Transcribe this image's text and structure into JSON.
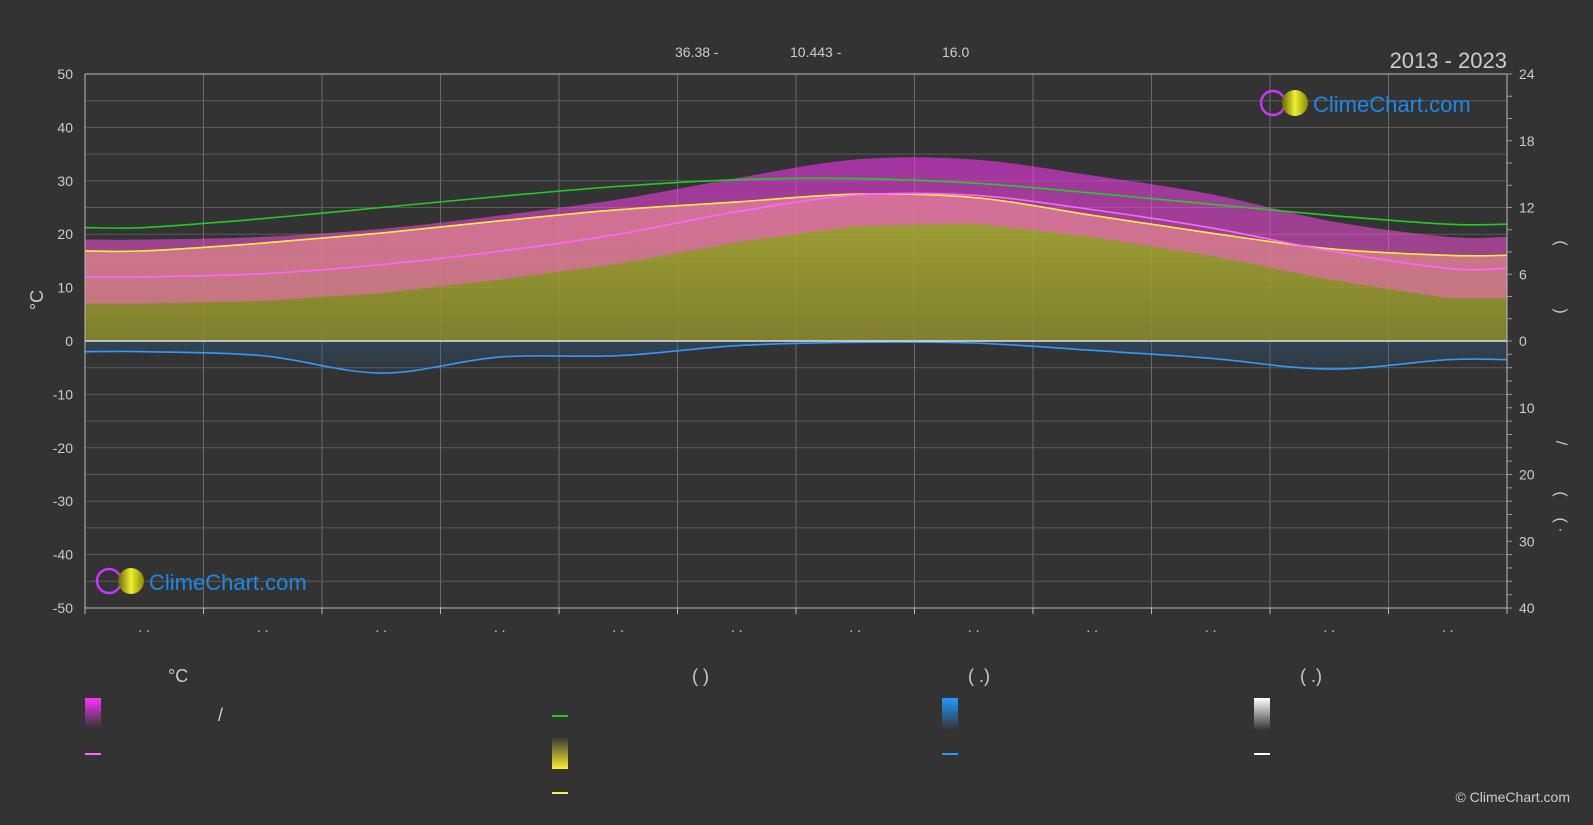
{
  "header": {
    "coords": [
      "36.38 -",
      "10.443 -",
      "16.0"
    ],
    "years": "2013 - 2023"
  },
  "brand": {
    "logo_text": "ClimeChart.com",
    "copyright": "© ClimeChart.com",
    "accent_color": "#1e88e5"
  },
  "chart_data": {
    "type": "area",
    "x": [
      1,
      2,
      3,
      4,
      5,
      6,
      7,
      8,
      9,
      10,
      11,
      12
    ],
    "x_tick_labels": [
      ". .",
      ". .",
      ". .",
      ". .",
      ". .",
      ". .",
      ". .",
      ". .",
      ". .",
      ". .",
      ". .",
      ". ."
    ],
    "y_left": {
      "label": "°C",
      "range": [
        -50,
        50
      ],
      "ticks": [
        50,
        40,
        30,
        20,
        10,
        0,
        -10,
        -20,
        -30,
        -40,
        -50
      ]
    },
    "y_right_top": {
      "range": [
        0,
        24
      ],
      "ticks": [
        24,
        18,
        12,
        6,
        0
      ],
      "label_marks": [
        "(",
        ")"
      ]
    },
    "y_right_bottom": {
      "range": [
        0,
        40
      ],
      "ticks": [
        10,
        20,
        30,
        40
      ],
      "label_marks": [
        "/",
        "(",
        ")",
        "( ·"
      ]
    },
    "grid": true,
    "series": [
      {
        "key": "daylight",
        "color": "#22cc22",
        "values": [
          10.2,
          11.0,
          12.0,
          13.0,
          13.9,
          14.5,
          14.6,
          14.2,
          13.3,
          12.3,
          11.3,
          10.5
        ]
      },
      {
        "key": "sunshine",
        "color": "#ffee44",
        "values": [
          8.1,
          8.8,
          9.7,
          10.8,
          11.8,
          12.5,
          13.2,
          12.9,
          11.3,
          9.7,
          8.3,
          7.7
        ]
      },
      {
        "key": "temp_mean",
        "color": "#ff66ff",
        "values": [
          12.0,
          12.6,
          14.3,
          16.8,
          20.0,
          24.2,
          27.3,
          27.3,
          24.6,
          21.2,
          16.9,
          13.6
        ]
      },
      {
        "key": "precip",
        "color": "#3399ff",
        "values": [
          1.6,
          2.2,
          4.8,
          2.4,
          2.2,
          0.7,
          0.2,
          0.3,
          1.4,
          2.6,
          4.2,
          2.8
        ]
      }
    ],
    "bands": {
      "temp_upper": [
        19,
        19.5,
        21,
        23.5,
        26.5,
        30.5,
        34,
        34,
        31,
        27.5,
        22.5,
        19.5
      ],
      "temp_lower": [
        7,
        7.5,
        9,
        11.5,
        14.5,
        18.5,
        21.5,
        22,
        19.5,
        16,
        11.5,
        8
      ]
    },
    "legend_headers": [
      "°C",
      "(   )",
      "(  .)",
      "(  .)"
    ],
    "legend_marks": [
      "/"
    ]
  }
}
